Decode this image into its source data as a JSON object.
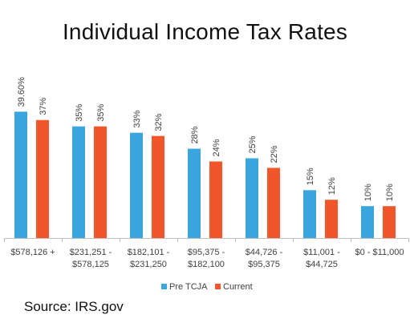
{
  "chart_data": {
    "type": "bar",
    "title": "Individual Income Tax Rates",
    "xlabel": "",
    "ylabel": "",
    "ylim": [
      0,
      40
    ],
    "grid": false,
    "legend_position": "bottom",
    "categories": [
      [
        "$578,126 +"
      ],
      [
        "$231,251 -",
        "$578,125"
      ],
      [
        "$182,101 -",
        "$231,250"
      ],
      [
        "$95,375 -",
        "$182,100"
      ],
      [
        "$44,726 -",
        "$95,375"
      ],
      [
        "$11,001 -",
        "$44,725"
      ],
      [
        "$0 - $11,000"
      ]
    ],
    "series": [
      {
        "name": "Pre TCJA",
        "color": "#3AA6E0",
        "values": [
          39.6,
          35,
          33,
          28,
          25,
          15,
          10
        ],
        "labels": [
          "39.60%",
          "35%",
          "33%",
          "28%",
          "25%",
          "15%",
          "10%"
        ]
      },
      {
        "name": "Current",
        "color": "#F0562A",
        "values": [
          37,
          35,
          32,
          24,
          22,
          12,
          10
        ],
        "labels": [
          "37%",
          "35%",
          "32%",
          "24%",
          "22%",
          "12%",
          "10%"
        ]
      }
    ]
  },
  "source": "Source: IRS.gov"
}
